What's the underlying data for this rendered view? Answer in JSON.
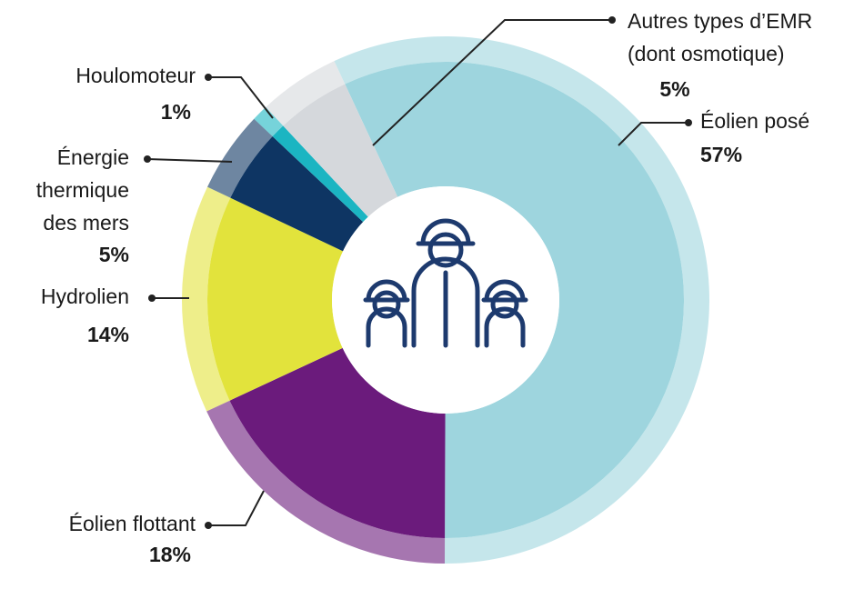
{
  "chart_data": {
    "type": "donut",
    "categories": [
      "Éolien posé",
      "Éolien flottant",
      "Hydrolien",
      "Énergie\nthermique\ndes mers",
      "Houlomoteur",
      "Autres types d’EMR\n(dont osmotique)"
    ],
    "values": [
      57,
      18,
      14,
      5,
      1,
      5
    ],
    "value_labels": [
      "57%",
      "18%",
      "14%",
      "5%",
      "1%",
      "5%"
    ],
    "colors": [
      "#9ed5de",
      "#6b1b7c",
      "#e2e33c",
      "#0e3563",
      "#1bb5c2",
      "#d5d8dc"
    ]
  }
}
